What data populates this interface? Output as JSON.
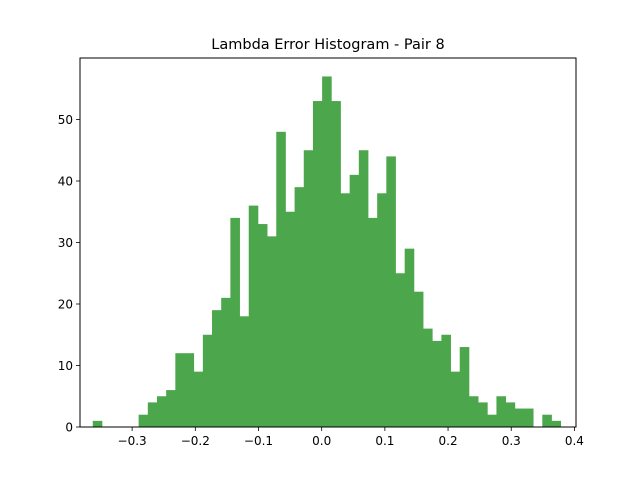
{
  "chart_data": {
    "type": "histogram",
    "title": "Lambda Error Histogram - Pair 8",
    "xlabel": "",
    "ylabel": "",
    "xlim": [
      -0.3825,
      0.4025
    ],
    "ylim": [
      0,
      60
    ],
    "xticks": [
      -0.3,
      -0.2,
      -0.1,
      0.0,
      0.1,
      0.2,
      0.3,
      0.4
    ],
    "xtick_labels": [
      "−0.3",
      "−0.2",
      "−0.1",
      "0.0",
      "0.1",
      "0.2",
      "0.3",
      "0.4"
    ],
    "yticks": [
      0,
      10,
      20,
      30,
      40,
      50
    ],
    "ytick_labels": [
      "0",
      "10",
      "20",
      "30",
      "40",
      "50"
    ],
    "bar_color": "#4ca64c",
    "grid": false,
    "bins": {
      "start": -0.3623,
      "width": 0.01452,
      "counts": [
        1,
        0,
        0,
        0,
        0,
        2,
        4,
        5,
        6,
        12,
        12,
        9,
        15,
        19,
        21,
        34,
        18,
        36,
        33,
        31,
        48,
        35,
        39,
        45,
        53,
        57,
        53,
        38,
        41,
        45,
        34,
        38,
        44,
        25,
        29,
        22,
        16,
        14,
        15,
        9,
        13,
        5,
        4,
        2,
        5,
        4,
        3,
        3,
        0,
        2,
        1
      ]
    }
  }
}
